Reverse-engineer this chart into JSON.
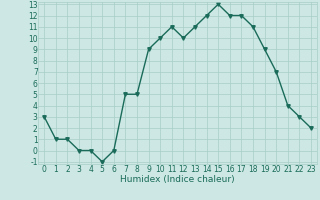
{
  "x": [
    0,
    1,
    2,
    3,
    4,
    5,
    6,
    7,
    8,
    9,
    10,
    11,
    12,
    13,
    14,
    15,
    16,
    17,
    18,
    19,
    20,
    21,
    22,
    23
  ],
  "y": [
    3,
    1,
    1,
    0,
    0,
    -1,
    0,
    5,
    5,
    9,
    10,
    11,
    10,
    11,
    12,
    13,
    12,
    12,
    11,
    9,
    7,
    4,
    3,
    2
  ],
  "line_color": "#1a6b5a",
  "marker_color": "#1a6b5a",
  "bg_color": "#cde8e4",
  "grid_color": "#a8cdc8",
  "xlabel": "Humidex (Indice chaleur)",
  "ylim": [
    -1,
    13
  ],
  "xlim": [
    -0.5,
    23.5
  ],
  "yticks": [
    -1,
    0,
    1,
    2,
    3,
    4,
    5,
    6,
    7,
    8,
    9,
    10,
    11,
    12,
    13
  ],
  "xticks": [
    0,
    1,
    2,
    3,
    4,
    5,
    6,
    7,
    8,
    9,
    10,
    11,
    12,
    13,
    14,
    15,
    16,
    17,
    18,
    19,
    20,
    21,
    22,
    23
  ],
  "font_color": "#1a6b5a",
  "xlabel_fontsize": 6.5,
  "tick_fontsize": 5.5,
  "linewidth": 1.0,
  "markersize": 2.5
}
